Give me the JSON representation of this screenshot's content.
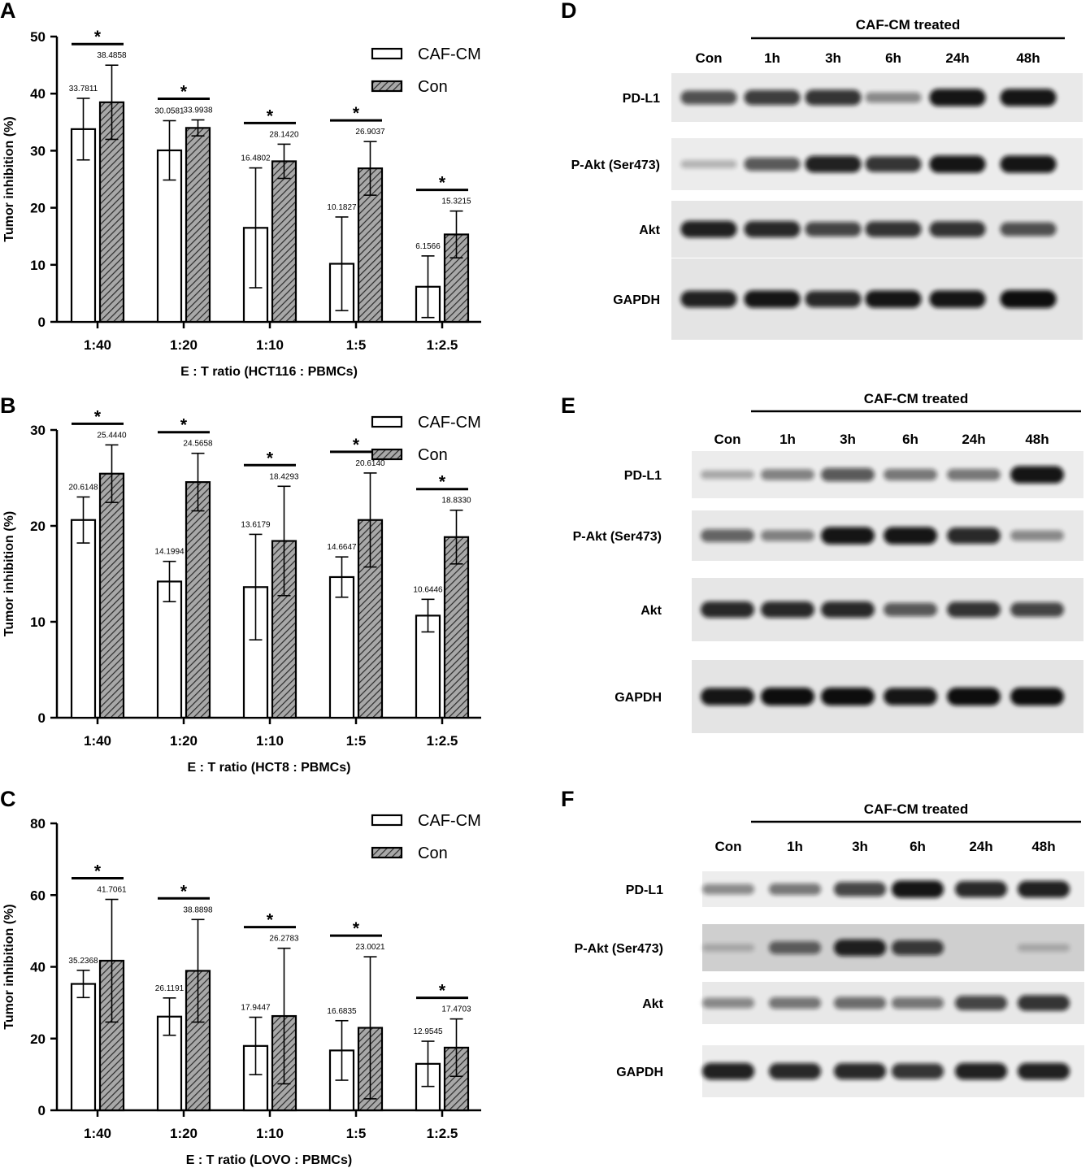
{
  "chart_data": [
    {
      "panel": "A",
      "type": "bar",
      "ylabel": "Tumor inhibition (%)",
      "xlabel": "E : T ratio (HCT116 : PBMCs)",
      "ylim": [
        0,
        50
      ],
      "yticks": [
        0,
        10,
        20,
        30,
        40,
        50
      ],
      "categories": [
        "1:40",
        "1:20",
        "1:10",
        "1:5",
        "1:2.5"
      ],
      "series": [
        {
          "name": "CAF-CM",
          "values": [
            33.7811,
            30.0581,
            16.4802,
            10.1827,
            6.1566
          ],
          "labels": [
            "33.7811",
            "30.0581",
            "16.4802",
            "10.1827",
            "6.1566"
          ],
          "errors": [
            5.4,
            5.2,
            10.5,
            8.2,
            5.4
          ]
        },
        {
          "name": "Con",
          "values": [
            38.4858,
            33.9938,
            28.142,
            26.9037,
            15.3215
          ],
          "labels": [
            "38.4858",
            "33.9938",
            "28.1420",
            "26.9037",
            "15.3215"
          ],
          "errors": [
            6.5,
            1.4,
            3.0,
            4.7,
            4.1
          ]
        }
      ],
      "significance": [
        "*",
        "*",
        "*",
        "*",
        "*"
      ],
      "legend": "top-right"
    },
    {
      "panel": "B",
      "type": "bar",
      "ylabel": "Tumor inhibition (%)",
      "xlabel": "E : T ratio (HCT8 : PBMCs)",
      "ylim": [
        0,
        30
      ],
      "yticks": [
        0,
        10,
        20,
        30
      ],
      "categories": [
        "1:40",
        "1:20",
        "1:10",
        "1:5",
        "1:2.5"
      ],
      "series": [
        {
          "name": "CAF-CM",
          "values": [
            20.6148,
            14.1994,
            13.6179,
            14.6647,
            10.6446
          ],
          "labels": [
            "20.6148",
            "14.1994",
            "13.6179",
            "14.6647",
            "10.6446"
          ],
          "errors": [
            2.4,
            2.1,
            5.5,
            2.1,
            1.7
          ]
        },
        {
          "name": "Con",
          "values": [
            25.444,
            24.5658,
            18.4293,
            20.614,
            18.833
          ],
          "labels": [
            "25.4440",
            "24.5658",
            "18.4293",
            "20.6140",
            "18.8330"
          ],
          "errors": [
            3.0,
            3.0,
            5.7,
            4.9,
            2.8
          ]
        }
      ],
      "significance": [
        "*",
        "*",
        "*",
        "*",
        "*"
      ],
      "legend": "top-right"
    },
    {
      "panel": "C",
      "type": "bar",
      "ylabel": "Tumor inhibition (%)",
      "xlabel": "E : T ratio (LOVO : PBMCs)",
      "ylim": [
        0,
        80
      ],
      "yticks": [
        0,
        20,
        40,
        60,
        80
      ],
      "categories": [
        "1:40",
        "1:20",
        "1:10",
        "1:5",
        "1:2.5"
      ],
      "series": [
        {
          "name": "CAF-CM",
          "values": [
            35.2368,
            26.1191,
            17.9447,
            16.6835,
            12.9545
          ],
          "labels": [
            "35.2368",
            "26.1191",
            "17.9447",
            "16.6835",
            "12.9545"
          ],
          "errors": [
            3.8,
            5.2,
            8.0,
            8.3,
            6.3
          ]
        },
        {
          "name": "Con",
          "values": [
            41.7061,
            38.8898,
            26.2783,
            23.0021,
            17.4703
          ],
          "labels": [
            "41.7061",
            "38.8898",
            "26.2783",
            "23.0021",
            "17.4703"
          ],
          "errors": [
            17.1,
            14.3,
            18.9,
            19.8,
            8.0
          ]
        }
      ],
      "significance": [
        "*",
        "*",
        "*",
        "*",
        "*"
      ],
      "legend": "top-right"
    }
  ],
  "blots": [
    {
      "panel": "D",
      "header": "CAF-CM treated",
      "lanes": [
        "Con",
        "1h",
        "3h",
        "6h",
        "24h",
        "48h"
      ],
      "rows": [
        {
          "label": "PD-L1",
          "intensity": [
            0.65,
            0.75,
            0.8,
            0.35,
            0.95,
            0.95
          ],
          "bg": "#e9e9e9"
        },
        {
          "label": "P-Akt (Ser473)",
          "intensity": [
            0.15,
            0.6,
            0.9,
            0.8,
            0.95,
            0.95
          ],
          "bg": "#ececec"
        },
        {
          "label": "Akt",
          "intensity": [
            0.9,
            0.85,
            0.7,
            0.8,
            0.8,
            0.65
          ],
          "bg": "#e6e6e6"
        },
        {
          "label": "GAPDH",
          "intensity": [
            0.9,
            0.95,
            0.85,
            0.95,
            0.95,
            1.0
          ],
          "bg": "#e4e4e4"
        }
      ]
    },
    {
      "panel": "E",
      "header": "CAF-CM treated",
      "lanes": [
        "Con",
        "1h",
        "3h",
        "6h",
        "24h",
        "48h"
      ],
      "rows": [
        {
          "label": "PD-L1",
          "intensity": [
            0.2,
            0.4,
            0.6,
            0.45,
            0.45,
            0.95
          ],
          "bg": "#ececec"
        },
        {
          "label": "P-Akt (Ser473)",
          "intensity": [
            0.55,
            0.4,
            0.95,
            0.95,
            0.85,
            0.35
          ],
          "bg": "#e8e8e8"
        },
        {
          "label": "Akt",
          "intensity": [
            0.85,
            0.85,
            0.85,
            0.6,
            0.8,
            0.7
          ],
          "bg": "#e6e6e6"
        },
        {
          "label": "GAPDH",
          "intensity": [
            0.95,
            1.0,
            1.0,
            0.95,
            1.0,
            1.0
          ],
          "bg": "#e4e4e4"
        }
      ]
    },
    {
      "panel": "F",
      "header": "CAF-CM treated",
      "lanes": [
        "Con",
        "1h",
        "3h",
        "6h",
        "24h",
        "48h"
      ],
      "rows": [
        {
          "label": "PD-L1",
          "intensity": [
            0.35,
            0.45,
            0.7,
            0.95,
            0.85,
            0.9
          ],
          "bg": "#ededed"
        },
        {
          "label": "P-Akt (Ser473)",
          "intensity": [
            0.1,
            0.55,
            0.9,
            0.75,
            0.0,
            0.1
          ],
          "bg": "#cfcfcf"
        },
        {
          "label": "Akt",
          "intensity": [
            0.35,
            0.45,
            0.5,
            0.45,
            0.7,
            0.8
          ],
          "bg": "#e8e8e8"
        },
        {
          "label": "GAPDH",
          "intensity": [
            0.9,
            0.85,
            0.85,
            0.8,
            0.9,
            0.9
          ],
          "bg": "#ececec"
        }
      ]
    }
  ],
  "colors": {
    "caf_fill": "#ffffff",
    "con_fill": "#9e9e9e",
    "hatch": "#333333",
    "axis": "#000000",
    "band": "#0d0d0d"
  }
}
